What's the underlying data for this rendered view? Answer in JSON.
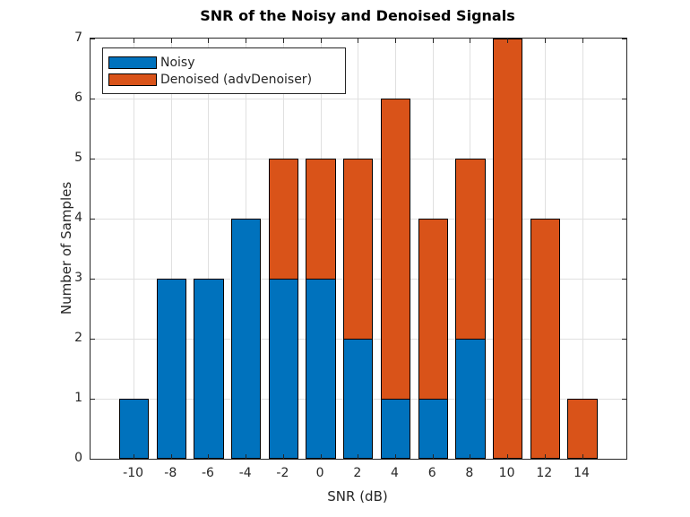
{
  "chart_data": {
    "type": "bar",
    "bar_style": "overlaid-histogram",
    "title": "SNR of the Noisy and Denoised Signals",
    "xlabel": "SNR (dB)",
    "ylabel": "Number of Samples",
    "categories": [
      -10,
      -8,
      -6,
      -4,
      -2,
      0,
      2,
      4,
      6,
      8,
      10,
      12,
      14
    ],
    "series": [
      {
        "name": "Noisy",
        "color": "#0072BD",
        "values": [
          1,
          3,
          3,
          4,
          3,
          3,
          2,
          1,
          1,
          2,
          0,
          0,
          0
        ]
      },
      {
        "name": "Denoised (advDenoiser)",
        "color": "#D95319",
        "values": [
          0,
          0,
          0,
          0,
          5,
          5,
          5,
          6,
          4,
          5,
          7,
          4,
          1
        ]
      }
    ],
    "draw_order_back_to_front": [
      "Denoised (advDenoiser)",
      "Noisy"
    ],
    "xlim": [
      -12.33,
      16.35
    ],
    "ylim": [
      0,
      7
    ],
    "xticks": [
      -10,
      -8,
      -6,
      -4,
      -2,
      0,
      2,
      4,
      6,
      8,
      10,
      12,
      14
    ],
    "yticks": [
      0,
      1,
      2,
      3,
      4,
      5,
      6,
      7
    ],
    "bar_width_units": 1.6,
    "grid": true,
    "legend_position": "top-left-inside",
    "colors": {
      "bar_edge": "#000000",
      "axis": "#262626",
      "grid": "#e0e0e0",
      "background": "#ffffff",
      "tick_label": "#262626"
    }
  }
}
